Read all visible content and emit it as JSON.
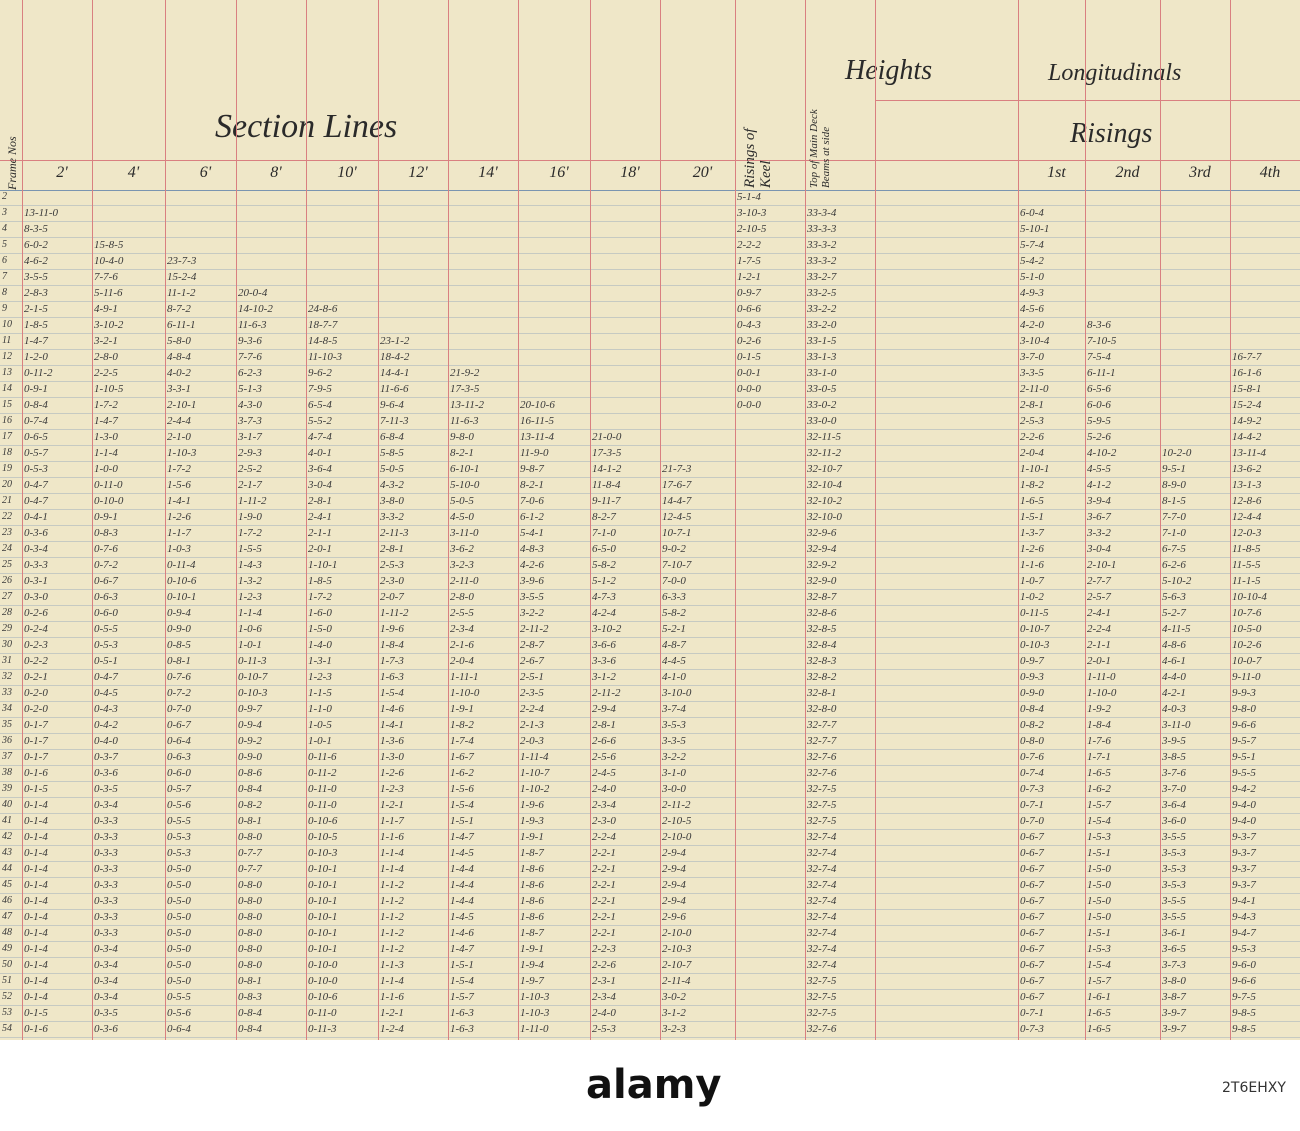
{
  "header": {
    "section_lines": "Section Lines",
    "heights": "Heights",
    "longitudinals": "Longitudinals",
    "risings": "Risings",
    "frame_nos": "Frame Nos",
    "keel": "Risings of Keel",
    "deck": "Top of Main Deck Beams at side"
  },
  "table": {
    "columns": [
      "2'",
      "4'",
      "6'",
      "8'",
      "10'",
      "12'",
      "14'",
      "16'",
      "18'",
      "20'",
      "1st",
      "2nd",
      "3rd",
      "4th"
    ],
    "rows": [
      [
        "2",
        null,
        null,
        null,
        null,
        null,
        null,
        null,
        null,
        null,
        null,
        "5-1-4",
        null,
        null,
        null,
        null,
        null
      ],
      [
        "3",
        "13-11-0",
        null,
        null,
        null,
        null,
        null,
        null,
        null,
        null,
        null,
        "3-10-3",
        "33-3-4",
        "6-0-4",
        null,
        null,
        null
      ],
      [
        "4",
        "8-3-5",
        null,
        null,
        null,
        null,
        null,
        null,
        null,
        null,
        null,
        "2-10-5",
        "33-3-3",
        "5-10-1",
        null,
        null,
        null
      ],
      [
        "5",
        "6-0-2",
        "15-8-5",
        null,
        null,
        null,
        null,
        null,
        null,
        null,
        null,
        "2-2-2",
        "33-3-2",
        "5-7-4",
        null,
        null,
        null
      ],
      [
        "6",
        "4-6-2",
        "10-4-0",
        "23-7-3",
        null,
        null,
        null,
        null,
        null,
        null,
        null,
        "1-7-5",
        "33-3-2",
        "5-4-2",
        null,
        null,
        null
      ],
      [
        "7",
        "3-5-5",
        "7-7-6",
        "15-2-4",
        null,
        null,
        null,
        null,
        null,
        null,
        null,
        "1-2-1",
        "33-2-7",
        "5-1-0",
        null,
        null,
        null
      ],
      [
        "8",
        "2-8-3",
        "5-11-6",
        "11-1-2",
        "20-0-4",
        null,
        null,
        null,
        null,
        null,
        null,
        "0-9-7",
        "33-2-5",
        "4-9-3",
        null,
        null,
        null
      ],
      [
        "9",
        "2-1-5",
        "4-9-1",
        "8-7-2",
        "14-10-2",
        "24-8-6",
        null,
        null,
        null,
        null,
        null,
        "0-6-6",
        "33-2-2",
        "4-5-6",
        null,
        null,
        null
      ],
      [
        "10",
        "1-8-5",
        "3-10-2",
        "6-11-1",
        "11-6-3",
        "18-7-7",
        null,
        null,
        null,
        null,
        null,
        "0-4-3",
        "33-2-0",
        "4-2-0",
        "8-3-6",
        null,
        null
      ],
      [
        "11",
        "1-4-7",
        "3-2-1",
        "5-8-0",
        "9-3-6",
        "14-8-5",
        "23-1-2",
        null,
        null,
        null,
        null,
        "0-2-6",
        "33-1-5",
        "3-10-4",
        "7-10-5",
        null,
        null
      ],
      [
        "12",
        "1-2-0",
        "2-8-0",
        "4-8-4",
        "7-7-6",
        "11-10-3",
        "18-4-2",
        null,
        null,
        null,
        null,
        "0-1-5",
        "33-1-3",
        "3-7-0",
        "7-5-4",
        null,
        "16-7-7"
      ],
      [
        "13",
        "0-11-2",
        "2-2-5",
        "4-0-2",
        "6-2-3",
        "9-6-2",
        "14-4-1",
        "21-9-2",
        null,
        null,
        null,
        "0-0-1",
        "33-1-0",
        "3-3-5",
        "6-11-1",
        null,
        "16-1-6"
      ],
      [
        "14",
        "0-9-1",
        "1-10-5",
        "3-3-1",
        "5-1-3",
        "7-9-5",
        "11-6-6",
        "17-3-5",
        null,
        null,
        null,
        "0-0-0",
        "33-0-5",
        "2-11-0",
        "6-5-6",
        null,
        "15-8-1"
      ],
      [
        "15",
        "0-8-4",
        "1-7-2",
        "2-10-1",
        "4-3-0",
        "6-5-4",
        "9-6-4",
        "13-11-2",
        "20-10-6",
        null,
        null,
        "0-0-0",
        "33-0-2",
        "2-8-1",
        "6-0-6",
        null,
        "15-2-4"
      ],
      [
        "16",
        "0-7-4",
        "1-4-7",
        "2-4-4",
        "3-7-3",
        "5-5-2",
        "7-11-3",
        "11-6-3",
        "16-11-5",
        null,
        null,
        null,
        "33-0-0",
        "2-5-3",
        "5-9-5",
        null,
        "14-9-2"
      ],
      [
        "17",
        "0-6-5",
        "1-3-0",
        "2-1-0",
        "3-1-7",
        "4-7-4",
        "6-8-4",
        "9-8-0",
        "13-11-4",
        "21-0-0",
        null,
        null,
        "32-11-5",
        "2-2-6",
        "5-2-6",
        null,
        "14-4-2"
      ],
      [
        "18",
        "0-5-7",
        "1-1-4",
        "1-10-3",
        "2-9-3",
        "4-0-1",
        "5-8-5",
        "8-2-1",
        "11-9-0",
        "17-3-5",
        null,
        null,
        "32-11-2",
        "2-0-4",
        "4-10-2",
        "10-2-0",
        "13-11-4"
      ],
      [
        "19",
        "0-5-3",
        "1-0-0",
        "1-7-2",
        "2-5-2",
        "3-6-4",
        "5-0-5",
        "6-10-1",
        "9-8-7",
        "14-1-2",
        "21-7-3",
        null,
        "32-10-7",
        "1-10-1",
        "4-5-5",
        "9-5-1",
        "13-6-2"
      ],
      [
        "20",
        "0-4-7",
        "0-11-0",
        "1-5-6",
        "2-1-7",
        "3-0-4",
        "4-3-2",
        "5-10-0",
        "8-2-1",
        "11-8-4",
        "17-6-7",
        null,
        "32-10-4",
        "1-8-2",
        "4-1-2",
        "8-9-0",
        "13-1-3"
      ],
      [
        "21",
        "0-4-7",
        "0-10-0",
        "1-4-1",
        "1-11-2",
        "2-8-1",
        "3-8-0",
        "5-0-5",
        "7-0-6",
        "9-11-7",
        "14-4-7",
        null,
        "32-10-2",
        "1-6-5",
        "3-9-4",
        "8-1-5",
        "12-8-6"
      ],
      [
        "22",
        "0-4-1",
        "0-9-1",
        "1-2-6",
        "1-9-0",
        "2-4-1",
        "3-3-2",
        "4-5-0",
        "6-1-2",
        "8-2-7",
        "12-4-5",
        null,
        "32-10-0",
        "1-5-1",
        "3-6-7",
        "7-7-0",
        "12-4-4"
      ],
      [
        "23",
        "0-3-6",
        "0-8-3",
        "1-1-7",
        "1-7-2",
        "2-1-1",
        "2-11-3",
        "3-11-0",
        "5-4-1",
        "7-1-0",
        "10-7-1",
        null,
        "32-9-6",
        "1-3-7",
        "3-3-2",
        "7-1-0",
        "12-0-3"
      ],
      [
        "24",
        "0-3-4",
        "0-7-6",
        "1-0-3",
        "1-5-5",
        "2-0-1",
        "2-8-1",
        "3-6-2",
        "4-8-3",
        "6-5-0",
        "9-0-2",
        null,
        "32-9-4",
        "1-2-6",
        "3-0-4",
        "6-7-5",
        "11-8-5"
      ],
      [
        "25",
        "0-3-3",
        "0-7-2",
        "0-11-4",
        "1-4-3",
        "1-10-1",
        "2-5-3",
        "3-2-3",
        "4-2-6",
        "5-8-2",
        "7-10-7",
        null,
        "32-9-2",
        "1-1-6",
        "2-10-1",
        "6-2-6",
        "11-5-5"
      ],
      [
        "26",
        "0-3-1",
        "0-6-7",
        "0-10-6",
        "1-3-2",
        "1-8-5",
        "2-3-0",
        "2-11-0",
        "3-9-6",
        "5-1-2",
        "7-0-0",
        null,
        "32-9-0",
        "1-0-7",
        "2-7-7",
        "5-10-2",
        "11-1-5"
      ],
      [
        "27",
        "0-3-0",
        "0-6-3",
        "0-10-1",
        "1-2-3",
        "1-7-2",
        "2-0-7",
        "2-8-0",
        "3-5-5",
        "4-7-3",
        "6-3-3",
        null,
        "32-8-7",
        "1-0-2",
        "2-5-7",
        "5-6-3",
        "10-10-4"
      ],
      [
        "28",
        "0-2-6",
        "0-6-0",
        "0-9-4",
        "1-1-4",
        "1-6-0",
        "1-11-2",
        "2-5-5",
        "3-2-2",
        "4-2-4",
        "5-8-2",
        null,
        "32-8-6",
        "0-11-5",
        "2-4-1",
        "5-2-7",
        "10-7-6"
      ],
      [
        "29",
        "0-2-4",
        "0-5-5",
        "0-9-0",
        "1-0-6",
        "1-5-0",
        "1-9-6",
        "2-3-4",
        "2-11-2",
        "3-10-2",
        "5-2-1",
        null,
        "32-8-5",
        "0-10-7",
        "2-2-4",
        "4-11-5",
        "10-5-0"
      ],
      [
        "30",
        "0-2-3",
        "0-5-3",
        "0-8-5",
        "1-0-1",
        "1-4-0",
        "1-8-4",
        "2-1-6",
        "2-8-7",
        "3-6-6",
        "4-8-7",
        null,
        "32-8-4",
        "0-10-3",
        "2-1-1",
        "4-8-6",
        "10-2-6"
      ],
      [
        "31",
        "0-2-2",
        "0-5-1",
        "0-8-1",
        "0-11-3",
        "1-3-1",
        "1-7-3",
        "2-0-4",
        "2-6-7",
        "3-3-6",
        "4-4-5",
        null,
        "32-8-3",
        "0-9-7",
        "2-0-1",
        "4-6-1",
        "10-0-7"
      ],
      [
        "32",
        "0-2-1",
        "0-4-7",
        "0-7-6",
        "0-10-7",
        "1-2-3",
        "1-6-3",
        "1-11-1",
        "2-5-1",
        "3-1-2",
        "4-1-0",
        null,
        "32-8-2",
        "0-9-3",
        "1-11-0",
        "4-4-0",
        "9-11-0"
      ],
      [
        "33",
        "0-2-0",
        "0-4-5",
        "0-7-2",
        "0-10-3",
        "1-1-5",
        "1-5-4",
        "1-10-0",
        "2-3-5",
        "2-11-2",
        "3-10-0",
        null,
        "32-8-1",
        "0-9-0",
        "1-10-0",
        "4-2-1",
        "9-9-3"
      ],
      [
        "34",
        "0-2-0",
        "0-4-3",
        "0-7-0",
        "0-9-7",
        "1-1-0",
        "1-4-6",
        "1-9-1",
        "2-2-4",
        "2-9-4",
        "3-7-4",
        null,
        "32-8-0",
        "0-8-4",
        "1-9-2",
        "4-0-3",
        "9-8-0"
      ],
      [
        "35",
        "0-1-7",
        "0-4-2",
        "0-6-7",
        "0-9-4",
        "1-0-5",
        "1-4-1",
        "1-8-2",
        "2-1-3",
        "2-8-1",
        "3-5-3",
        null,
        "32-7-7",
        "0-8-2",
        "1-8-4",
        "3-11-0",
        "9-6-6"
      ],
      [
        "36",
        "0-1-7",
        "0-4-0",
        "0-6-4",
        "0-9-2",
        "1-0-1",
        "1-3-6",
        "1-7-4",
        "2-0-3",
        "2-6-6",
        "3-3-5",
        null,
        "32-7-7",
        "0-8-0",
        "1-7-6",
        "3-9-5",
        "9-5-7"
      ],
      [
        "37",
        "0-1-7",
        "0-3-7",
        "0-6-3",
        "0-9-0",
        "0-11-6",
        "1-3-0",
        "1-6-7",
        "1-11-4",
        "2-5-6",
        "3-2-2",
        null,
        "32-7-6",
        "0-7-6",
        "1-7-1",
        "3-8-5",
        "9-5-1"
      ],
      [
        "38",
        "0-1-6",
        "0-3-6",
        "0-6-0",
        "0-8-6",
        "0-11-2",
        "1-2-6",
        "1-6-2",
        "1-10-7",
        "2-4-5",
        "3-1-0",
        null,
        "32-7-6",
        "0-7-4",
        "1-6-5",
        "3-7-6",
        "9-5-5"
      ],
      [
        "39",
        "0-1-5",
        "0-3-5",
        "0-5-7",
        "0-8-4",
        "0-11-0",
        "1-2-3",
        "1-5-6",
        "1-10-2",
        "2-4-0",
        "3-0-0",
        null,
        "32-7-5",
        "0-7-3",
        "1-6-2",
        "3-7-0",
        "9-4-2"
      ],
      [
        "40",
        "0-1-4",
        "0-3-4",
        "0-5-6",
        "0-8-2",
        "0-11-0",
        "1-2-1",
        "1-5-4",
        "1-9-6",
        "2-3-4",
        "2-11-2",
        null,
        "32-7-5",
        "0-7-1",
        "1-5-7",
        "3-6-4",
        "9-4-0"
      ],
      [
        "41",
        "0-1-4",
        "0-3-3",
        "0-5-5",
        "0-8-1",
        "0-10-6",
        "1-1-7",
        "1-5-1",
        "1-9-3",
        "2-3-0",
        "2-10-5",
        null,
        "32-7-5",
        "0-7-0",
        "1-5-4",
        "3-6-0",
        "9-4-0"
      ],
      [
        "42",
        "0-1-4",
        "0-3-3",
        "0-5-3",
        "0-8-0",
        "0-10-5",
        "1-1-6",
        "1-4-7",
        "1-9-1",
        "2-2-4",
        "2-10-0",
        null,
        "32-7-4",
        "0-6-7",
        "1-5-3",
        "3-5-5",
        "9-3-7"
      ],
      [
        "43",
        "0-1-4",
        "0-3-3",
        "0-5-3",
        "0-7-7",
        "0-10-3",
        "1-1-4",
        "1-4-5",
        "1-8-7",
        "2-2-1",
        "2-9-4",
        null,
        "32-7-4",
        "0-6-7",
        "1-5-1",
        "3-5-3",
        "9-3-7"
      ],
      [
        "44",
        "0-1-4",
        "0-3-3",
        "0-5-0",
        "0-7-7",
        "0-10-1",
        "1-1-4",
        "1-4-4",
        "1-8-6",
        "2-2-1",
        "2-9-4",
        null,
        "32-7-4",
        "0-6-7",
        "1-5-0",
        "3-5-3",
        "9-3-7"
      ],
      [
        "45",
        "0-1-4",
        "0-3-3",
        "0-5-0",
        "0-8-0",
        "0-10-1",
        "1-1-2",
        "1-4-4",
        "1-8-6",
        "2-2-1",
        "2-9-4",
        null,
        "32-7-4",
        "0-6-7",
        "1-5-0",
        "3-5-3",
        "9-3-7"
      ],
      [
        "46",
        "0-1-4",
        "0-3-3",
        "0-5-0",
        "0-8-0",
        "0-10-1",
        "1-1-2",
        "1-4-4",
        "1-8-6",
        "2-2-1",
        "2-9-4",
        null,
        "32-7-4",
        "0-6-7",
        "1-5-0",
        "3-5-5",
        "9-4-1"
      ],
      [
        "47",
        "0-1-4",
        "0-3-3",
        "0-5-0",
        "0-8-0",
        "0-10-1",
        "1-1-2",
        "1-4-5",
        "1-8-6",
        "2-2-1",
        "2-9-6",
        null,
        "32-7-4",
        "0-6-7",
        "1-5-0",
        "3-5-5",
        "9-4-3"
      ],
      [
        "48",
        "0-1-4",
        "0-3-3",
        "0-5-0",
        "0-8-0",
        "0-10-1",
        "1-1-2",
        "1-4-6",
        "1-8-7",
        "2-2-1",
        "2-10-0",
        null,
        "32-7-4",
        "0-6-7",
        "1-5-1",
        "3-6-1",
        "9-4-7"
      ],
      [
        "49",
        "0-1-4",
        "0-3-4",
        "0-5-0",
        "0-8-0",
        "0-10-1",
        "1-1-2",
        "1-4-7",
        "1-9-1",
        "2-2-3",
        "2-10-3",
        null,
        "32-7-4",
        "0-6-7",
        "1-5-3",
        "3-6-5",
        "9-5-3"
      ],
      [
        "50",
        "0-1-4",
        "0-3-4",
        "0-5-0",
        "0-8-0",
        "0-10-0",
        "1-1-3",
        "1-5-1",
        "1-9-4",
        "2-2-6",
        "2-10-7",
        null,
        "32-7-4",
        "0-6-7",
        "1-5-4",
        "3-7-3",
        "9-6-0"
      ],
      [
        "51",
        "0-1-4",
        "0-3-4",
        "0-5-0",
        "0-8-1",
        "0-10-0",
        "1-1-4",
        "1-5-4",
        "1-9-7",
        "2-3-1",
        "2-11-4",
        null,
        "32-7-5",
        "0-6-7",
        "1-5-7",
        "3-8-0",
        "9-6-6"
      ],
      [
        "52",
        "0-1-4",
        "0-3-4",
        "0-5-5",
        "0-8-3",
        "0-10-6",
        "1-1-6",
        "1-5-7",
        "1-10-3",
        "2-3-4",
        "3-0-2",
        null,
        "32-7-5",
        "0-6-7",
        "1-6-1",
        "3-8-7",
        "9-7-5"
      ],
      [
        "53",
        "0-1-5",
        "0-3-5",
        "0-5-6",
        "0-8-4",
        "0-11-0",
        "1-2-1",
        "1-6-3",
        "1-10-3",
        "2-4-0",
        "3-1-2",
        null,
        "32-7-5",
        "0-7-1",
        "1-6-5",
        "3-9-7",
        "9-8-5"
      ],
      [
        "54",
        "0-1-6",
        "0-3-6",
        "0-6-4",
        "0-8-4",
        "0-11-3",
        "1-2-4",
        "1-6-3",
        "1-11-0",
        "2-5-3",
        "3-2-3",
        null,
        "32-7-6",
        "0-7-3",
        "1-6-5",
        "3-9-7",
        "9-8-5"
      ]
    ]
  },
  "footer": {
    "brand": "alamy",
    "image_id": "2T6EHXY"
  }
}
